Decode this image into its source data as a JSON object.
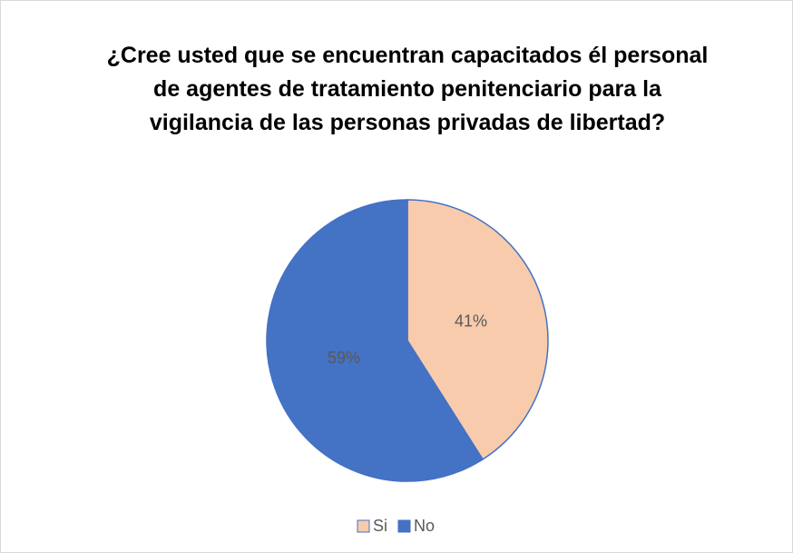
{
  "chart_data": {
    "type": "pie",
    "title": "¿Cree usted que se encuentran capacitados él personal de agentes de tratamiento penitenciario para la vigilancia de las personas privadas de libertad?",
    "categories": [
      "Si",
      "No"
    ],
    "values": [
      41,
      59
    ],
    "value_labels": [
      "41%",
      "59%"
    ],
    "colors": [
      "#f8cbad",
      "#4472c4"
    ],
    "legend": "bottom"
  }
}
